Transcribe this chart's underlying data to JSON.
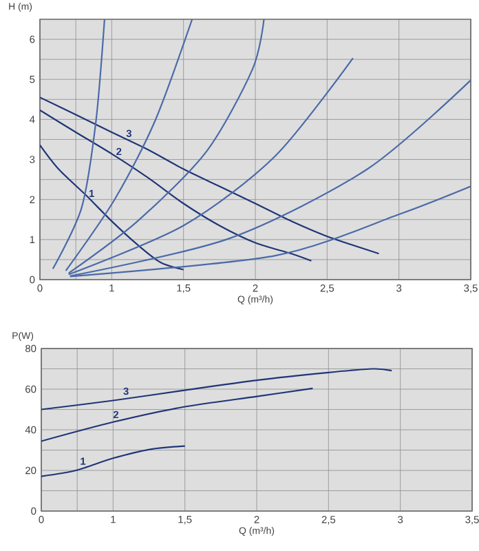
{
  "chart_data": [
    {
      "type": "line",
      "ylabel": "H (m)",
      "xlabel": "Q (m³/h)",
      "xlim": [
        0.5,
        3.5
      ],
      "ylim": [
        0,
        6.5
      ],
      "xticks": [
        {
          "value": 0.5,
          "label": "0"
        },
        {
          "value": 0.75,
          "label": null
        },
        1,
        {
          "value": 1.5,
          "label": "1,5"
        },
        2,
        {
          "value": 2.5,
          "label": "2,5"
        },
        3,
        {
          "value": 3.5,
          "label": "3,5"
        }
      ],
      "yticks": [
        0,
        {
          "value": 0.5,
          "label": null
        },
        1,
        {
          "value": 1.5,
          "label": null
        },
        2,
        {
          "value": 2.5,
          "label": null
        },
        3,
        {
          "value": 3.5,
          "label": null
        },
        4,
        {
          "value": 4.5,
          "label": null
        },
        5,
        {
          "value": 5.5,
          "label": null
        },
        6
      ],
      "grid": true,
      "series": [
        {
          "color": "#1f3577",
          "x": [
            0.5,
            0.75,
            1.0,
            1.25,
            1.5,
            1.75,
            2.0,
            2.25,
            2.5,
            2.86
          ],
          "values": [
            4.55,
            4.12,
            3.68,
            3.25,
            2.76,
            2.33,
            1.9,
            1.46,
            1.08,
            0.65
          ]
        },
        {
          "color": "#1f3577",
          "x": [
            0.5,
            0.75,
            1.0,
            1.25,
            1.5,
            1.75,
            2.0,
            2.25,
            2.39
          ],
          "values": [
            4.23,
            3.68,
            3.14,
            2.55,
            1.9,
            1.35,
            0.92,
            0.65,
            0.47
          ]
        },
        {
          "color": "#1f3577",
          "x": [
            0.5,
            0.63,
            0.82,
            1.0,
            1.18,
            1.34,
            1.5
          ],
          "values": [
            3.36,
            2.76,
            2.11,
            1.46,
            0.87,
            0.43,
            0.25
          ]
        },
        {
          "color": "#4a6aa8",
          "x": [
            0.59,
            0.79,
            0.89,
            0.95
          ],
          "values": [
            0.27,
            1.79,
            3.95,
            6.5
          ]
        },
        {
          "color": "#4a6aa8",
          "x": [
            0.68,
            1.02,
            1.3,
            1.56
          ],
          "values": [
            0.22,
            2.0,
            3.95,
            6.5
          ]
        },
        {
          "color": "#4a6aa8",
          "x": [
            0.7,
            1.18,
            1.66,
            1.98,
            2.06
          ],
          "values": [
            0.16,
            1.46,
            3.2,
            5.25,
            6.5
          ]
        },
        {
          "color": "#4a6aa8",
          "x": [
            0.7,
            1.5,
            2.14,
            2.68
          ],
          "values": [
            0.13,
            1.35,
            3.09,
            5.53
          ]
        },
        {
          "color": "#4a6aa8",
          "x": [
            0.71,
            1.82,
            2.78,
            3.5
          ],
          "values": [
            0.09,
            1.03,
            2.76,
            4.98
          ]
        },
        {
          "color": "#4a6aa8",
          "x": [
            0.71,
            2.14,
            3.0,
            3.5
          ],
          "values": [
            0.08,
            0.6,
            1.63,
            2.33
          ]
        }
      ],
      "annotations": [
        {
          "text": "3",
          "x": 1.12,
          "y": 3.65
        },
        {
          "text": "2",
          "x": 1.05,
          "y": 3.2
        },
        {
          "text": "1",
          "x": 0.86,
          "y": 2.15
        }
      ]
    },
    {
      "type": "line",
      "ylabel": "P(W)",
      "xlabel": "Q (m³/h)",
      "xlim": [
        0.5,
        3.5
      ],
      "ylim": [
        0,
        80
      ],
      "xticks": [
        {
          "value": 0.5,
          "label": "0"
        },
        {
          "value": 0.75,
          "label": null
        },
        1,
        {
          "value": 1.5,
          "label": "1,5"
        },
        2,
        {
          "value": 2.5,
          "label": "2,5"
        },
        3,
        {
          "value": 3.5,
          "label": "3,5"
        }
      ],
      "yticks": [
        0,
        {
          "value": 10,
          "label": null
        },
        20,
        {
          "value": 30,
          "label": null
        },
        40,
        {
          "value": 50,
          "label": null
        },
        60,
        {
          "value": 70,
          "label": null
        },
        80
      ],
      "grid": true,
      "series": [
        {
          "color": "#1f3577",
          "x": [
            0.5,
            1.0,
            1.48,
            2.0,
            2.5,
            2.81,
            2.94
          ],
          "values": [
            50,
            54.4,
            59.3,
            64.4,
            68.2,
            70,
            69.1
          ]
        },
        {
          "color": "#1f3577",
          "x": [
            0.5,
            1.0,
            1.48,
            2.0,
            2.39
          ],
          "values": [
            34.4,
            43.8,
            51.1,
            56.4,
            60.4
          ]
        },
        {
          "color": "#1f3577",
          "x": [
            0.5,
            0.74,
            1.0,
            1.26,
            1.5
          ],
          "values": [
            17.1,
            20,
            26,
            30.4,
            32
          ]
        }
      ],
      "annotations": [
        {
          "text": "3",
          "x": 1.09,
          "y": 59
        },
        {
          "text": "2",
          "x": 1.02,
          "y": 47.5
        },
        {
          "text": "1",
          "x": 0.79,
          "y": 24.5
        }
      ]
    }
  ]
}
